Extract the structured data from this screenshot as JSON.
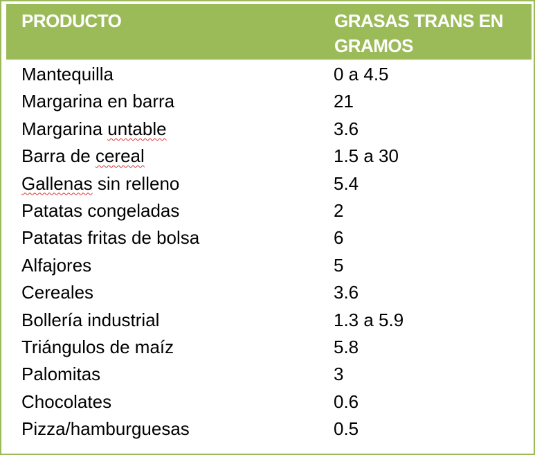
{
  "table": {
    "headers": {
      "product": "PRODUCTO",
      "grams": "GRASAS TRANS EN GRAMOS"
    },
    "rows": [
      {
        "product": "Mantequilla",
        "grams": "0 a 4.5"
      },
      {
        "product": "Margarina en barra",
        "grams": "21"
      },
      {
        "product_a": "Margarina ",
        "product_b": "untable",
        "grams": "3.6"
      },
      {
        "product_a": "Barra de ",
        "product_b": "cereal",
        "grams": "1.5 a 30"
      },
      {
        "product_b": "Gallenas",
        "product_a": " sin relleno",
        "grams": "5.4"
      },
      {
        "product": "Patatas congeladas",
        "grams": "2"
      },
      {
        "product": "Patatas fritas de bolsa",
        "grams": "6"
      },
      {
        "product": "Alfajores",
        "grams": "5"
      },
      {
        "product": "Cereales",
        "grams": "3.6"
      },
      {
        "product": "Bollería industrial",
        "grams": "1.3 a 5.9"
      },
      {
        "product": "Triángulos de maíz",
        "grams": "5.8"
      },
      {
        "product": "Palomitas",
        "grams": "3"
      },
      {
        "product": "Chocolates",
        "grams": "0.6"
      },
      {
        "product": "Pizza/hamburguesas",
        "grams": "0.5"
      }
    ]
  },
  "colors": {
    "header_bg": "#9bbb59",
    "header_text": "#ffffff",
    "border": "#9bbb59",
    "spellcheck_underline": "#e03030"
  }
}
